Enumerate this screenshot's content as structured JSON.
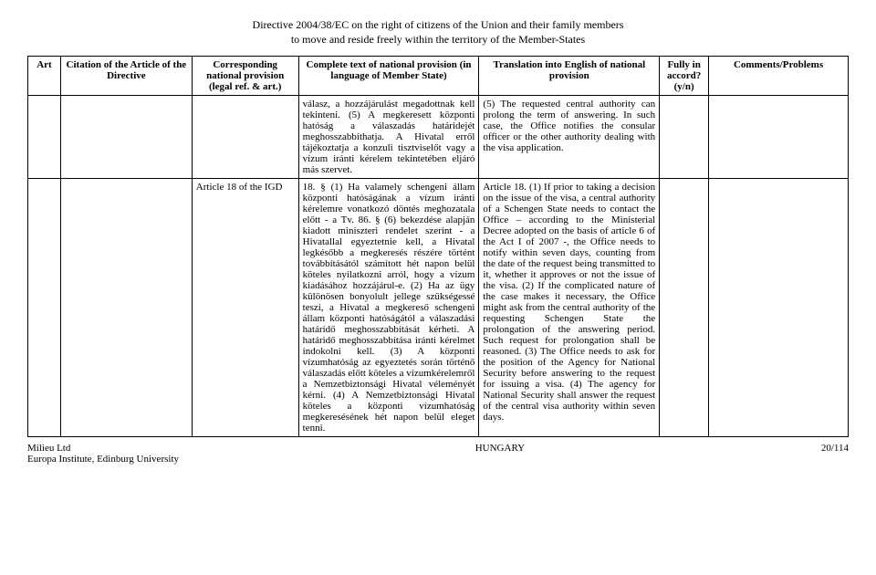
{
  "doc": {
    "title_line1": "Directive 2004/38/EC on the right of citizens of the Union and their family members",
    "title_line2": "to move and reside freely within the territory of the Member-States"
  },
  "headers": {
    "art": "Art",
    "citation": "Citation of the Article of the Directive",
    "national": "Corresponding national provision (legal ref. & art.)",
    "complete": "Complete text of national provision (in language of Member State)",
    "translation": "Translation into English of national provision",
    "accord": "Fully in accord? (y/n)",
    "comments": "Comments/Problems"
  },
  "row1": {
    "national_text": "válasz, a hozzájárulást megadottnak kell tekinteni.\n(5) A megkeresett központi hatóság a válaszadás határidejét meghosszabbíthatja. A Hivatal erről tájékoztatja a konzuli tisztviselőt vagy a vízum iránti kérelem tekintetében eljáró más szervet.",
    "translation_text": "(5) The requested central authority can prolong the term of answering. In such case, the Office notifies the consular officer or the other authority dealing with the visa application."
  },
  "row2": {
    "corresponding": "Article 18 of the IGD",
    "national_text": "18. § (1) Ha valamely schengeni állam központi hatóságának a vízum iránti kérelemre vonatkozó döntés meghozatala előtt - a Tv. 86. § (6) bekezdése alapján kiadott miniszteri rendelet szerint - a Hivatallal egyeztetnie kell, a Hivatal legkésőbb a megkeresés részére történt továbbításától számított hét napon belül köteles nyilatkozni arról, hogy a vízum kiadásához hozzájárul-e.\n(2) Ha az ügy különösen bonyolult jellege szükségessé teszi, a Hivatal a megkereső schengeni állam központi hatóságától a válaszadási határidő meghosszabbítását kérheti. A határidő meghosszabbítása iránti kérelmet indokolni kell.\n(3) A központi vízumhatóság az egyeztetés során történő válaszadás előtt köteles a vízumkérelemről a Nemzetbiztonsági Hivatal véleményét kérni.\n(4) A Nemzetbiztonsági Hivatal köteles a központi vízumhatóság megkeresésének hét napon belül eleget tenni.",
    "translation_text": "Article 18. (1) If prior to taking a decision on the issue of the visa, a central authority of a Schengen State needs to contact the Office – according to the Ministerial Decree adopted on the basis of article 6 of the Act I of 2007 -, the Office needs to notify within seven days, counting from the date of the request being transmitted to it, whether it approves or not the issue of the visa.\n(2) If the complicated nature of the case makes it necessary, the Office might ask from the central authority of the requesting Schengen State the prolongation of the answering period. Such request for prolongation shall be reasoned.\n(3) The Office needs to ask for the position of the Agency for National Security before answering to the request for issuing a visa.\n(4) The agency for National Security shall answer the request of the central visa authority within seven days."
  },
  "footer": {
    "left1": "Milieu Ltd",
    "left2": "Europa Institute, Edinburg University",
    "center": "HUNGARY",
    "right": "20/114"
  }
}
